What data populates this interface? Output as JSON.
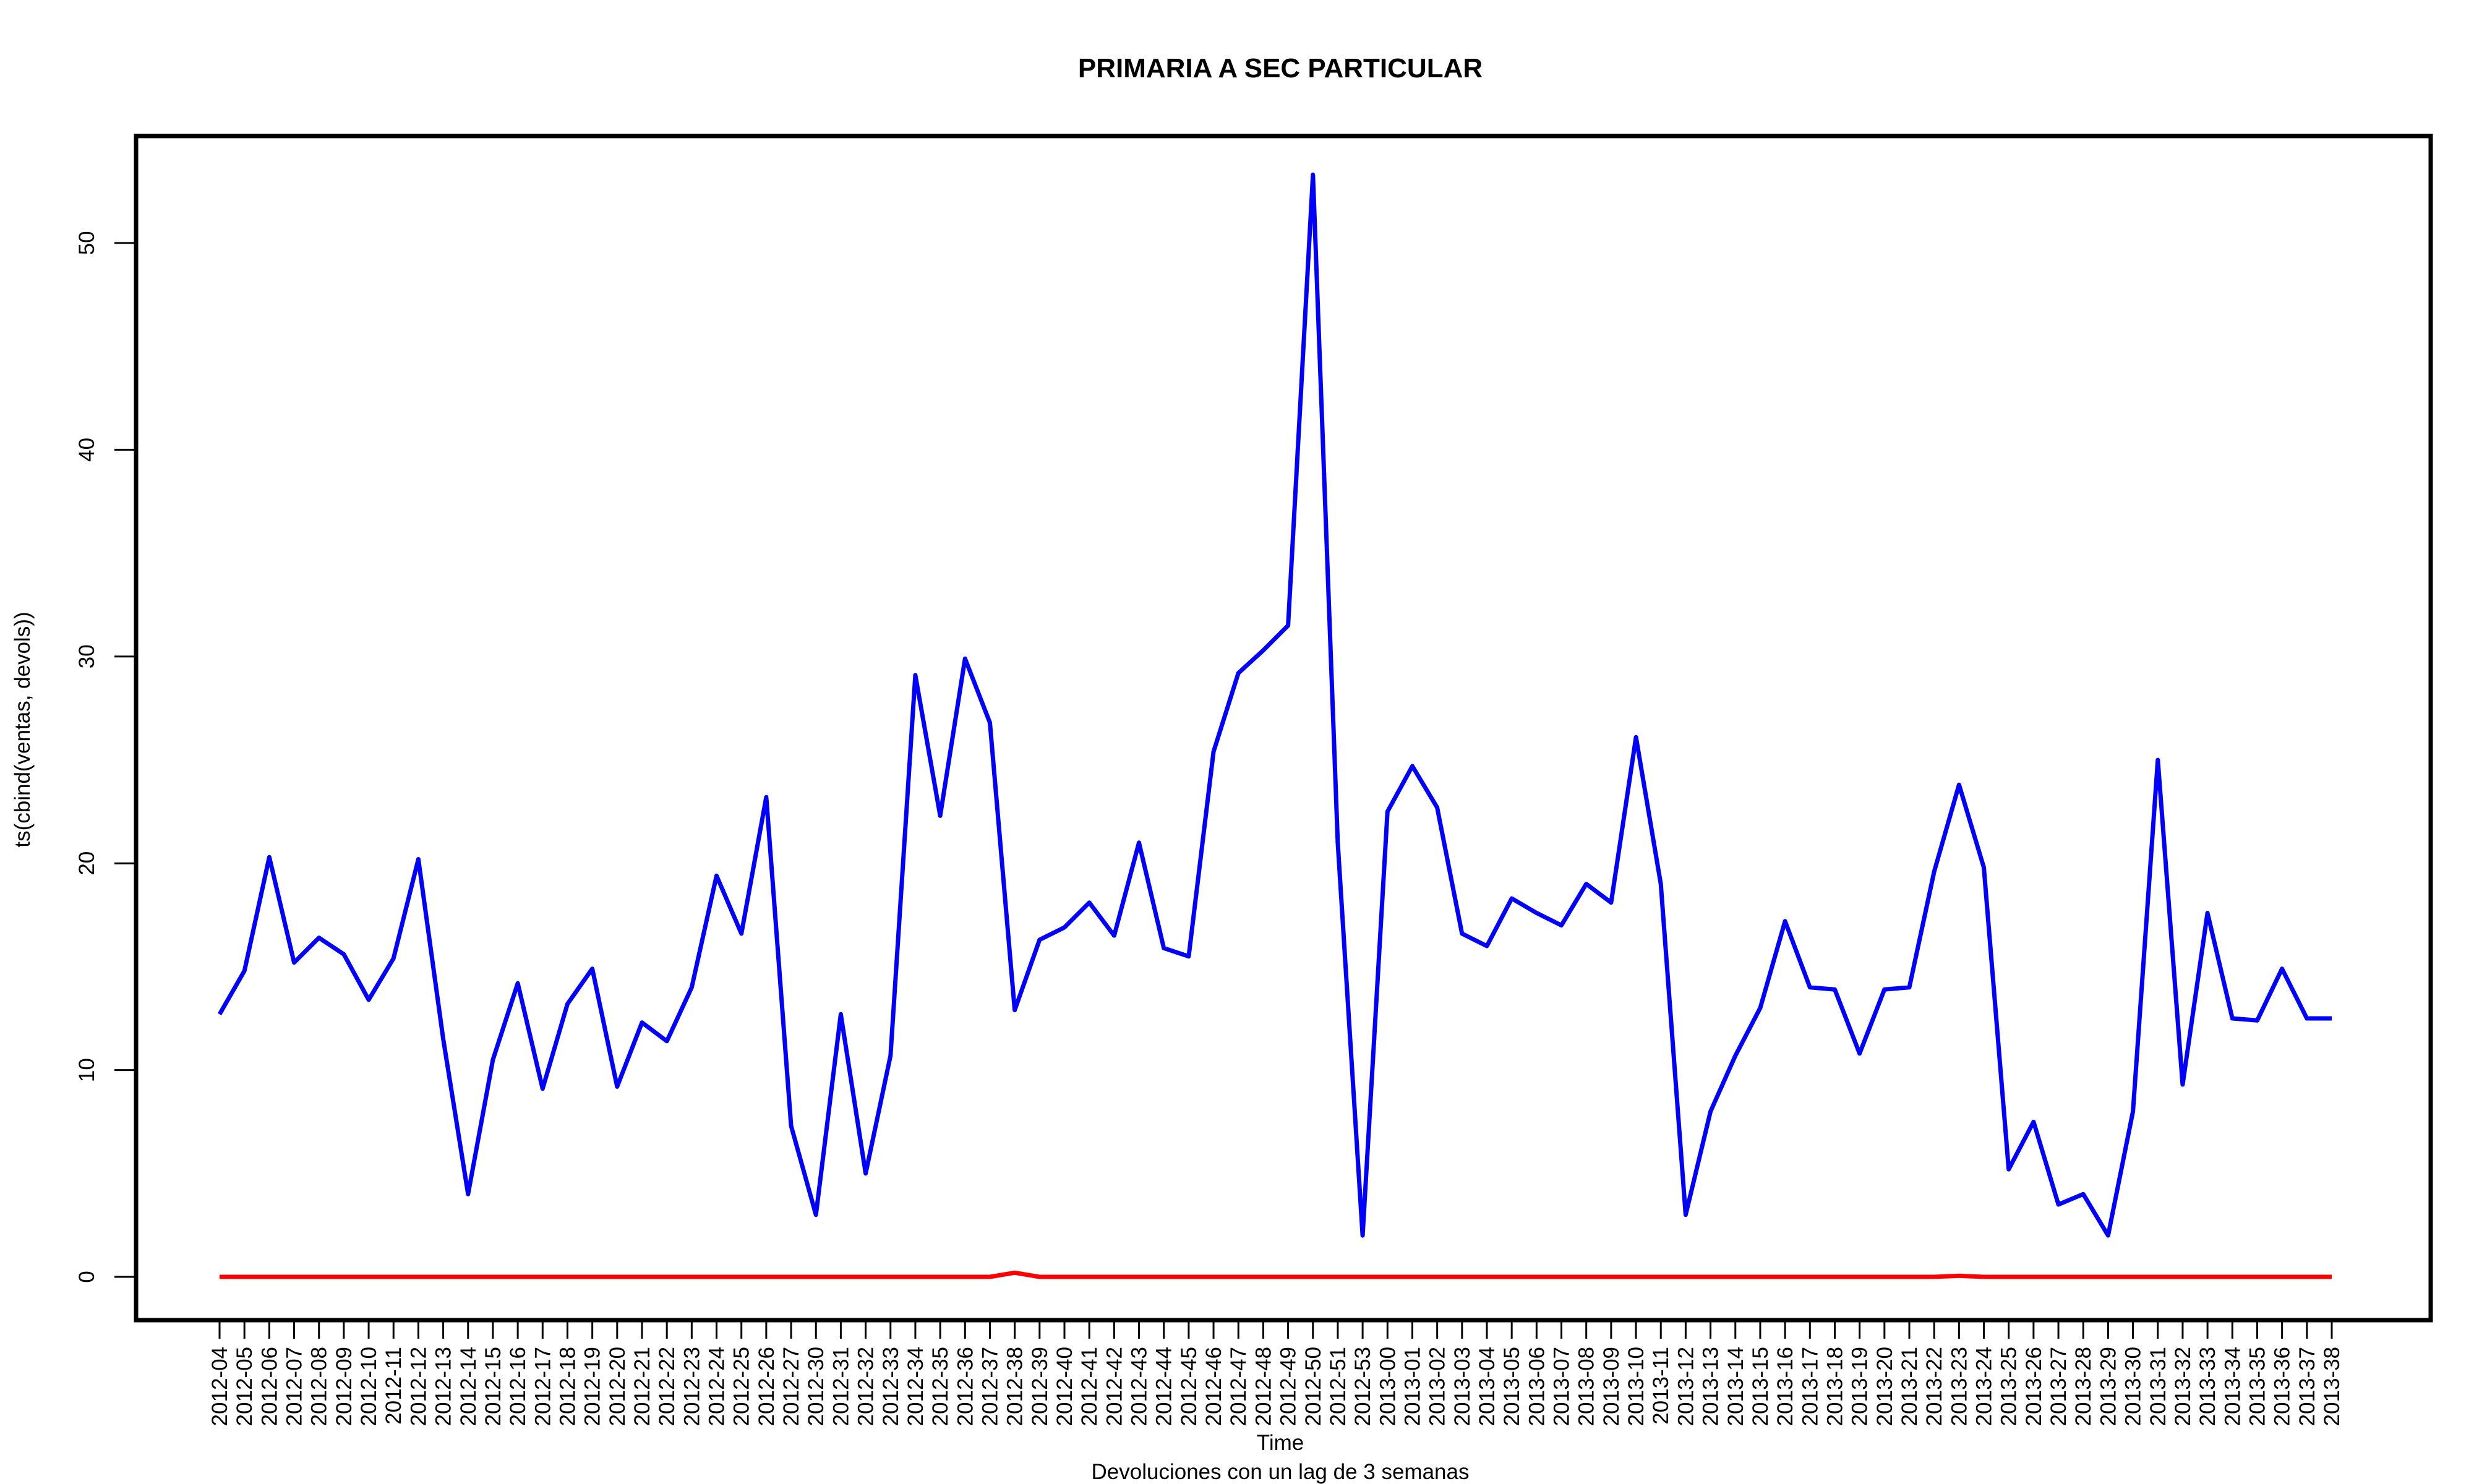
{
  "chart_data": {
    "type": "line",
    "title": "PRIMARIA A SEC PARTICULAR",
    "xlabel": "Time",
    "subtitle": "Devoluciones con un lag de 3 semanas",
    "ylabel": "ts(cbind(ventas, devols))",
    "ylim": [
      -2,
      55
    ],
    "yticks": [
      0,
      10,
      20,
      30,
      40,
      50
    ],
    "grid": false,
    "categories": [
      "2012-04",
      "2012-05",
      "2012-06",
      "2012-07",
      "2012-08",
      "2012-09",
      "2012-10",
      "2012-11",
      "2012-12",
      "2012-13",
      "2012-14",
      "2012-15",
      "2012-16",
      "2012-17",
      "2012-18",
      "2012-19",
      "2012-20",
      "2012-21",
      "2012-22",
      "2012-23",
      "2012-24",
      "2012-25",
      "2012-26",
      "2012-27",
      "2012-30",
      "2012-31",
      "2012-32",
      "2012-33",
      "2012-34",
      "2012-35",
      "2012-36",
      "2012-37",
      "2012-38",
      "2012-39",
      "2012-40",
      "2012-41",
      "2012-42",
      "2012-43",
      "2012-44",
      "2012-45",
      "2012-46",
      "2012-47",
      "2012-48",
      "2012-49",
      "2012-50",
      "2012-51",
      "2012-53",
      "2013-00",
      "2013-01",
      "2013-02",
      "2013-03",
      "2013-04",
      "2013-05",
      "2013-06",
      "2013-07",
      "2013-08",
      "2013-09",
      "2013-10",
      "2013-11",
      "2013-12",
      "2013-13",
      "2013-14",
      "2013-15",
      "2013-16",
      "2013-17",
      "2013-18",
      "2013-19",
      "2013-20",
      "2013-21",
      "2013-22",
      "2013-23",
      "2013-24",
      "2013-25",
      "2013-26",
      "2013-27",
      "2013-28",
      "2013-29",
      "2013-30",
      "2013-31",
      "2013-32",
      "2013-33",
      "2013-34",
      "2013-35",
      "2013-36",
      "2013-37",
      "2013-38"
    ],
    "series": [
      {
        "color": "#0000ff",
        "values": [
          12.7,
          14.8,
          20.3,
          15.2,
          16.4,
          15.6,
          13.4,
          15.4,
          20.2,
          11.5,
          4.0,
          10.5,
          14.2,
          9.1,
          13.2,
          14.9,
          9.2,
          12.3,
          11.4,
          14.0,
          19.4,
          16.6,
          23.2,
          7.3,
          3.0,
          12.7,
          5.0,
          10.7,
          29.1,
          22.3,
          29.9,
          26.8,
          12.9,
          16.3,
          16.9,
          18.1,
          16.5,
          21.0,
          15.9,
          15.5,
          25.4,
          29.2,
          30.3,
          31.5,
          53.3,
          21.0,
          2.0,
          22.5,
          24.7,
          22.7,
          16.6,
          16.0,
          18.3,
          17.6,
          17.0,
          19.0,
          18.1,
          26.1,
          19.0,
          3.0,
          8.0,
          10.7,
          13.0,
          17.2,
          14.0,
          13.9,
          10.8,
          13.9,
          14.0,
          19.6,
          23.8,
          19.8,
          5.2,
          7.5,
          3.5,
          4.0,
          2.0,
          8.0,
          25.0,
          9.3,
          17.6,
          12.5,
          12.4,
          14.9,
          12.5,
          12.5
        ]
      },
      {
        "color": "#ff0000",
        "values": [
          0,
          0,
          0,
          0,
          0,
          0,
          0,
          0,
          0,
          0,
          0,
          0,
          0,
          0,
          0,
          0,
          0,
          0,
          0,
          0,
          0,
          0,
          0,
          0,
          0,
          0,
          0,
          0,
          0,
          0,
          0,
          0,
          0.2,
          0,
          0,
          0,
          0,
          0,
          0,
          0,
          0,
          0,
          0,
          0,
          0,
          0,
          0,
          0,
          0,
          0,
          0,
          0,
          0,
          0,
          0,
          0,
          0,
          0,
          0,
          0,
          0,
          0,
          0,
          0,
          0,
          0,
          0,
          0,
          0,
          0,
          0.05,
          0,
          0,
          0,
          0,
          0,
          0,
          0,
          0,
          0,
          0,
          0,
          0,
          0,
          0,
          0
        ]
      }
    ]
  }
}
